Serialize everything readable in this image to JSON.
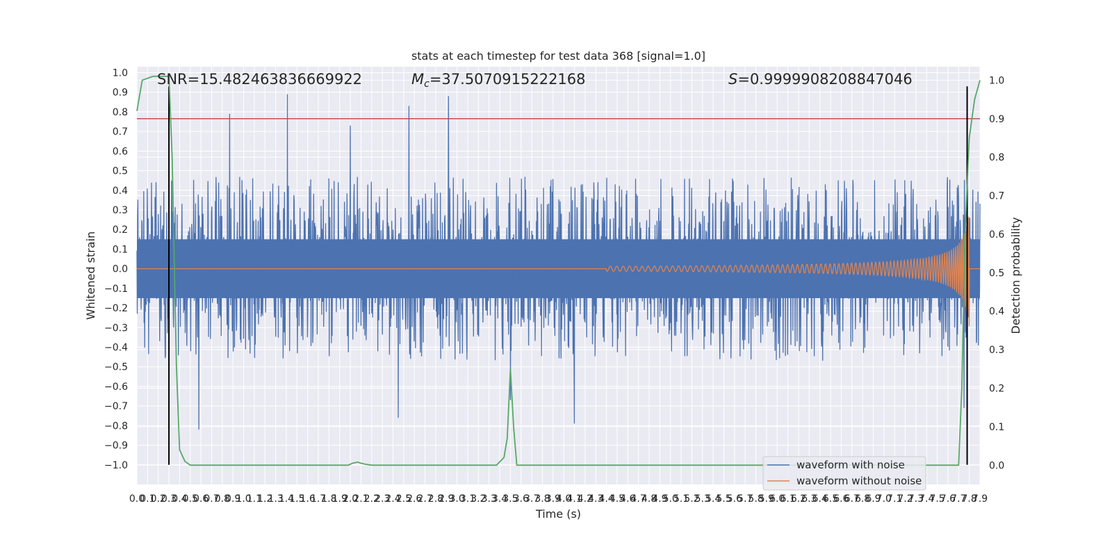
{
  "chart_data": {
    "type": "line",
    "title": "stats at each timestep for test data 368 [signal=1.0]",
    "xlabel": "Time (s)",
    "ylabel": "Whitened strain",
    "y2label": "Detection probability",
    "xlim": [
      0.0,
      7.9
    ],
    "ylim": [
      -1.1,
      1.03
    ],
    "y2lim": [
      -0.05,
      1.035
    ],
    "x_ticks": [
      0.0,
      0.1,
      0.2,
      0.3,
      0.4,
      0.5,
      0.6,
      0.7,
      0.8,
      0.9,
      1.0,
      1.1,
      1.2,
      1.3,
      1.4,
      1.5,
      1.6,
      1.7,
      1.8,
      1.9,
      2.0,
      2.1,
      2.2,
      2.3,
      2.4,
      2.5,
      2.6,
      2.7,
      2.8,
      2.9,
      3.0,
      3.1,
      3.2,
      3.3,
      3.4,
      3.5,
      3.6,
      3.7,
      3.8,
      3.9,
      4.0,
      4.1,
      4.2,
      4.3,
      4.4,
      4.5,
      4.6,
      4.7,
      4.8,
      4.9,
      5.0,
      5.1,
      5.2,
      5.3,
      5.4,
      5.5,
      5.6,
      5.7,
      5.8,
      5.9,
      6.0,
      6.1,
      6.2,
      6.3,
      6.4,
      6.5,
      6.6,
      6.7,
      6.8,
      6.9,
      7.0,
      7.1,
      7.2,
      7.3,
      7.4,
      7.5,
      7.6,
      7.7,
      7.8,
      7.9
    ],
    "y_ticks": [
      -1.0,
      -0.9,
      -0.8,
      -0.7,
      -0.6,
      -0.5,
      -0.4,
      -0.3,
      -0.2,
      -0.1,
      0.0,
      0.1,
      0.2,
      0.3,
      0.4,
      0.5,
      0.6,
      0.7,
      0.8,
      0.9,
      1.0
    ],
    "y2_ticks": [
      0.0,
      0.1,
      0.2,
      0.3,
      0.4,
      0.5,
      0.6,
      0.7,
      0.8,
      0.9,
      1.0
    ],
    "annotations": {
      "snr": "SNR=15.482463836669922",
      "mc_prefix": "M",
      "mc_sub": "c",
      "mc_value": "=37.5070915222168",
      "s_prefix": "S",
      "s_value": "=0.9999908208847046"
    },
    "legend": {
      "position": "lower-right",
      "entries": [
        "waveform with noise",
        "waveform without noise"
      ]
    },
    "threshold_line": {
      "axis": "y2",
      "value": 0.9,
      "color": "#c44e52"
    },
    "vertical_markers": [
      {
        "x": 0.3,
        "ymin": -1.0,
        "ymax": 0.93,
        "color": "#000000"
      },
      {
        "x": 7.78,
        "ymin": -1.0,
        "ymax": 0.93,
        "color": "#000000"
      }
    ],
    "series": [
      {
        "name": "waveform with noise",
        "color": "#4c72b0",
        "kind": "noise",
        "core_amplitude": 0.15,
        "typical_envelope": [
          -0.42,
          0.42
        ],
        "notable_peaks": [
          {
            "x": 0.87,
            "y": 0.79
          },
          {
            "x": 1.41,
            "y": 0.89
          },
          {
            "x": 2.55,
            "y": 0.83
          },
          {
            "x": 2.92,
            "y": 0.88
          },
          {
            "x": 2.0,
            "y": 0.73
          },
          {
            "x": 0.58,
            "y": -0.82
          },
          {
            "x": 4.1,
            "y": -0.79
          },
          {
            "x": 2.45,
            "y": -0.76
          },
          {
            "x": 3.5,
            "y": -0.67
          },
          {
            "x": 7.75,
            "y": -0.71
          }
        ]
      },
      {
        "name": "waveform without noise",
        "color": "#dd8452",
        "kind": "chirp",
        "start_x": 4.4,
        "end_x": 7.8,
        "end_amplitude": 0.3
      },
      {
        "color": "#55a868",
        "axis": "y2",
        "x": [
          0.0,
          0.05,
          0.1,
          0.15,
          0.2,
          0.25,
          0.3,
          0.33,
          0.37,
          0.4,
          0.45,
          0.5,
          0.55,
          0.6,
          1.0,
          1.5,
          1.98,
          2.02,
          2.07,
          2.1,
          2.15,
          2.2,
          2.5,
          3.0,
          3.37,
          3.44,
          3.47,
          3.5,
          3.53,
          3.56,
          3.6,
          4.0,
          5.0,
          6.0,
          7.0,
          7.7,
          7.73,
          7.76,
          7.8,
          7.85,
          7.9
        ],
        "y": [
          0.92,
          1.0,
          1.005,
          1.01,
          1.01,
          1.01,
          1.01,
          0.8,
          0.26,
          0.04,
          0.01,
          0.0,
          0.0,
          0.0,
          0.0,
          0.0,
          0.0,
          0.005,
          0.008,
          0.005,
          0.002,
          0.0,
          0.0,
          0.0,
          0.0,
          0.02,
          0.07,
          0.25,
          0.1,
          0.0,
          0.0,
          0.0,
          0.0,
          0.0,
          0.0,
          0.0,
          0.2,
          0.6,
          0.85,
          0.95,
          1.0
        ]
      }
    ]
  }
}
